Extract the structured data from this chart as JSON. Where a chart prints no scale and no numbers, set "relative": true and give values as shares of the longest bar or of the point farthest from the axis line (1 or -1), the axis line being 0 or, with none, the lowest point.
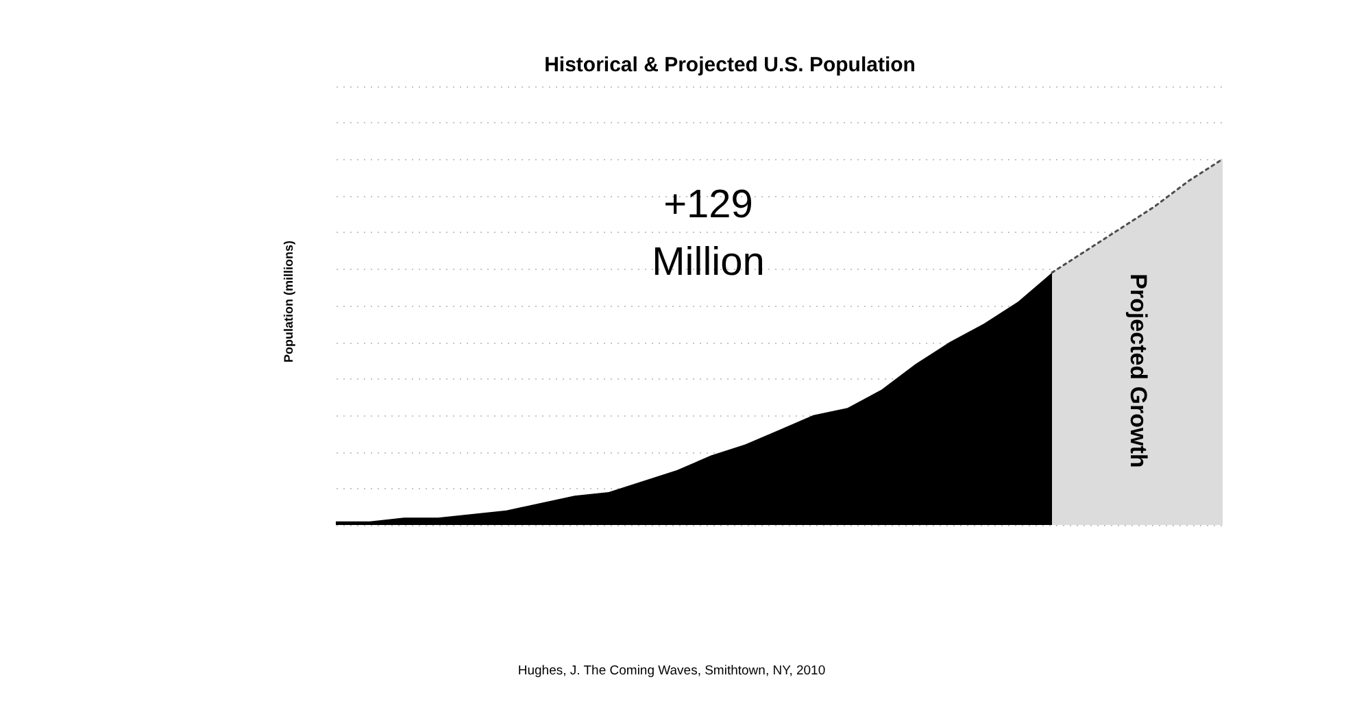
{
  "chart_data": {
    "type": "area",
    "title": "Historical & Projected U.S. Population",
    "ylabel": "Population (millions)",
    "relative": true,
    "categories": [
      null,
      null,
      null,
      null,
      null,
      null,
      null,
      null,
      null,
      null,
      null,
      null,
      null,
      null,
      null,
      null,
      null,
      null,
      null,
      null,
      null,
      null,
      null,
      null,
      null,
      null,
      null
    ],
    "series": [
      {
        "color": "#000000",
        "values": [
          0.01,
          0.01,
          0.02,
          0.02,
          0.03,
          0.04,
          0.06,
          0.08,
          0.09,
          0.12,
          0.15,
          0.19,
          0.22,
          0.26,
          0.3,
          0.32,
          0.37,
          0.44,
          0.5,
          0.55,
          0.61,
          0.69,
          null,
          null,
          null,
          null,
          null
        ]
      },
      {
        "name": "Projected Growth",
        "color": "#dcdcdc",
        "line_style": "dotted",
        "values": [
          null,
          null,
          null,
          null,
          null,
          null,
          null,
          null,
          null,
          null,
          null,
          null,
          null,
          null,
          null,
          null,
          null,
          null,
          null,
          null,
          null,
          0.69,
          0.75,
          0.81,
          0.87,
          0.94,
          1.0
        ]
      }
    ],
    "grid": "y",
    "annotations": [
      "+129 Million",
      "Hughes, J. The Coming Waves, Smithtown, NY, 2010"
    ]
  }
}
